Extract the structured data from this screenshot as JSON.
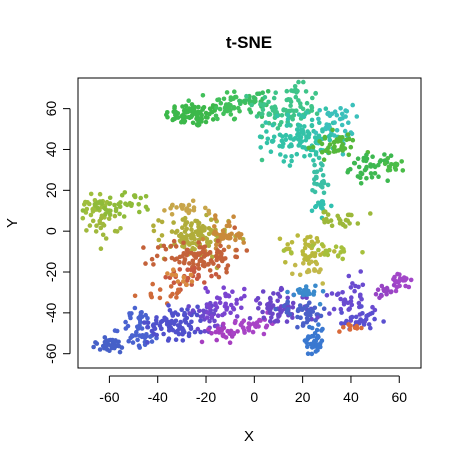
{
  "chart_data": {
    "type": "scatter",
    "title": "t-SNE",
    "xlabel": "X",
    "ylabel": "Y",
    "xlim": [
      -73,
      69
    ],
    "ylim": [
      -67,
      75
    ],
    "xticks": [
      -60,
      -40,
      -20,
      0,
      20,
      40,
      60
    ],
    "yticks": [
      -60,
      -40,
      -20,
      0,
      20,
      40,
      60
    ],
    "grid": false,
    "legend": "none",
    "clusters": [
      {
        "color": "#3cb84a",
        "cx": -25,
        "cy": 57,
        "sx": 6,
        "sy": 3,
        "n": 80
      },
      {
        "color": "#42c05a",
        "cx": -11,
        "cy": 62,
        "sx": 4,
        "sy": 4,
        "n": 40
      },
      {
        "color": "#3bbd63",
        "cx": 0,
        "cy": 63,
        "sx": 4,
        "sy": 4,
        "n": 25
      },
      {
        "color": "#3ec489",
        "cx": 14,
        "cy": 60,
        "sx": 7,
        "sy": 6,
        "n": 90
      },
      {
        "color": "#33c2a8",
        "cx": 20,
        "cy": 46,
        "sx": 7,
        "sy": 6,
        "n": 110
      },
      {
        "color": "#3bc0bb",
        "cx": 33,
        "cy": 52,
        "sx": 4,
        "sy": 5,
        "n": 40
      },
      {
        "color": "#55b83a",
        "cx": 33,
        "cy": 42,
        "sx": 5,
        "sy": 3,
        "n": 40
      },
      {
        "color": "#3db850",
        "cx": 48,
        "cy": 31,
        "sx": 4,
        "sy": 3,
        "n": 40
      },
      {
        "color": "#4abc48",
        "cx": 58,
        "cy": 32,
        "sx": 4,
        "sy": 2,
        "n": 15
      },
      {
        "color": "#3bbfa5",
        "cx": 27,
        "cy": 24,
        "sx": 2,
        "sy": 6,
        "n": 25
      },
      {
        "color": "#30c0b0",
        "cx": 28,
        "cy": 12,
        "sx": 2,
        "sy": 2,
        "n": 15
      },
      {
        "color": "#9cb83a",
        "cx": 36,
        "cy": 6,
        "sx": 4,
        "sy": 2,
        "n": 25
      },
      {
        "color": "#9fbe3d",
        "cx": -66,
        "cy": 12,
        "sx": 3,
        "sy": 3,
        "n": 30
      },
      {
        "color": "#8fbb3a",
        "cx": -55,
        "cy": 13,
        "sx": 7,
        "sy": 3,
        "n": 40
      },
      {
        "color": "#a0b83c",
        "cx": -62,
        "cy": 3,
        "sx": 3,
        "sy": 3,
        "n": 20
      },
      {
        "color": "#b0ad3a",
        "cx": -25,
        "cy": -3,
        "sx": 7,
        "sy": 5,
        "n": 110
      },
      {
        "color": "#c98a3a",
        "cx": -12,
        "cy": -2,
        "sx": 4,
        "sy": 4,
        "n": 40
      },
      {
        "color": "#c8a54a",
        "cx": -30,
        "cy": 10,
        "sx": 5,
        "sy": 2,
        "n": 20
      },
      {
        "color": "#c4623a",
        "cx": -23,
        "cy": -12,
        "sx": 9,
        "sy": 4,
        "n": 90
      },
      {
        "color": "#c75840",
        "cx": -27,
        "cy": -22,
        "sx": 5,
        "sy": 3,
        "n": 25
      },
      {
        "color": "#b9b83c",
        "cx": 22,
        "cy": -9,
        "sx": 5,
        "sy": 4,
        "n": 40
      },
      {
        "color": "#a6c03c",
        "cx": 31,
        "cy": -10,
        "sx": 6,
        "sy": 2,
        "n": 20
      },
      {
        "color": "#c2b84a",
        "cx": 24,
        "cy": -20,
        "sx": 3,
        "sy": 3,
        "n": 15
      },
      {
        "color": "#cf6b3a",
        "cx": -38,
        "cy": -30,
        "sx": 5,
        "sy": 3,
        "n": 15
      },
      {
        "color": "#d98a40",
        "cx": -30,
        "cy": -23,
        "sx": 3,
        "sy": 2,
        "n": 10
      },
      {
        "color": "#4660c8",
        "cx": -60,
        "cy": -56,
        "sx": 4,
        "sy": 2,
        "n": 35
      },
      {
        "color": "#4a63d0",
        "cx": -47,
        "cy": -48,
        "sx": 4,
        "sy": 5,
        "n": 50
      },
      {
        "color": "#5050cc",
        "cx": -32,
        "cy": -45,
        "sx": 6,
        "sy": 4,
        "n": 80
      },
      {
        "color": "#6a48cc",
        "cx": -20,
        "cy": -40,
        "sx": 4,
        "sy": 4,
        "n": 30
      },
      {
        "color": "#7a44d0",
        "cx": -12,
        "cy": -36,
        "sx": 4,
        "sy": 5,
        "n": 40
      },
      {
        "color": "#a63ec0",
        "cx": -12,
        "cy": -50,
        "sx": 3,
        "sy": 2,
        "n": 25
      },
      {
        "color": "#a844c6",
        "cx": 0,
        "cy": -45,
        "sx": 5,
        "sy": 2,
        "n": 30
      },
      {
        "color": "#6b45c8",
        "cx": 10,
        "cy": -38,
        "sx": 6,
        "sy": 4,
        "n": 70
      },
      {
        "color": "#4a60c8",
        "cx": 20,
        "cy": -40,
        "sx": 5,
        "sy": 3,
        "n": 40
      },
      {
        "color": "#3a78d0",
        "cx": 25,
        "cy": -53,
        "sx": 2,
        "sy": 4,
        "n": 45
      },
      {
        "color": "#3a8acc",
        "cx": 21,
        "cy": -30,
        "sx": 3,
        "sy": 2,
        "n": 20
      },
      {
        "color": "#6a4bd0",
        "cx": 41,
        "cy": -33,
        "sx": 5,
        "sy": 5,
        "n": 40
      },
      {
        "color": "#5a50d0",
        "cx": 42,
        "cy": -44,
        "sx": 4,
        "sy": 3,
        "n": 30
      },
      {
        "color": "#9844c4",
        "cx": 55,
        "cy": -30,
        "sx": 3,
        "sy": 2,
        "n": 15
      },
      {
        "color": "#a246c8",
        "cx": 61,
        "cy": -24,
        "sx": 2,
        "sy": 2,
        "n": 25
      },
      {
        "color": "#d96a3a",
        "cx": 40,
        "cy": -47,
        "sx": 3,
        "sy": 1,
        "n": 10
      }
    ]
  }
}
